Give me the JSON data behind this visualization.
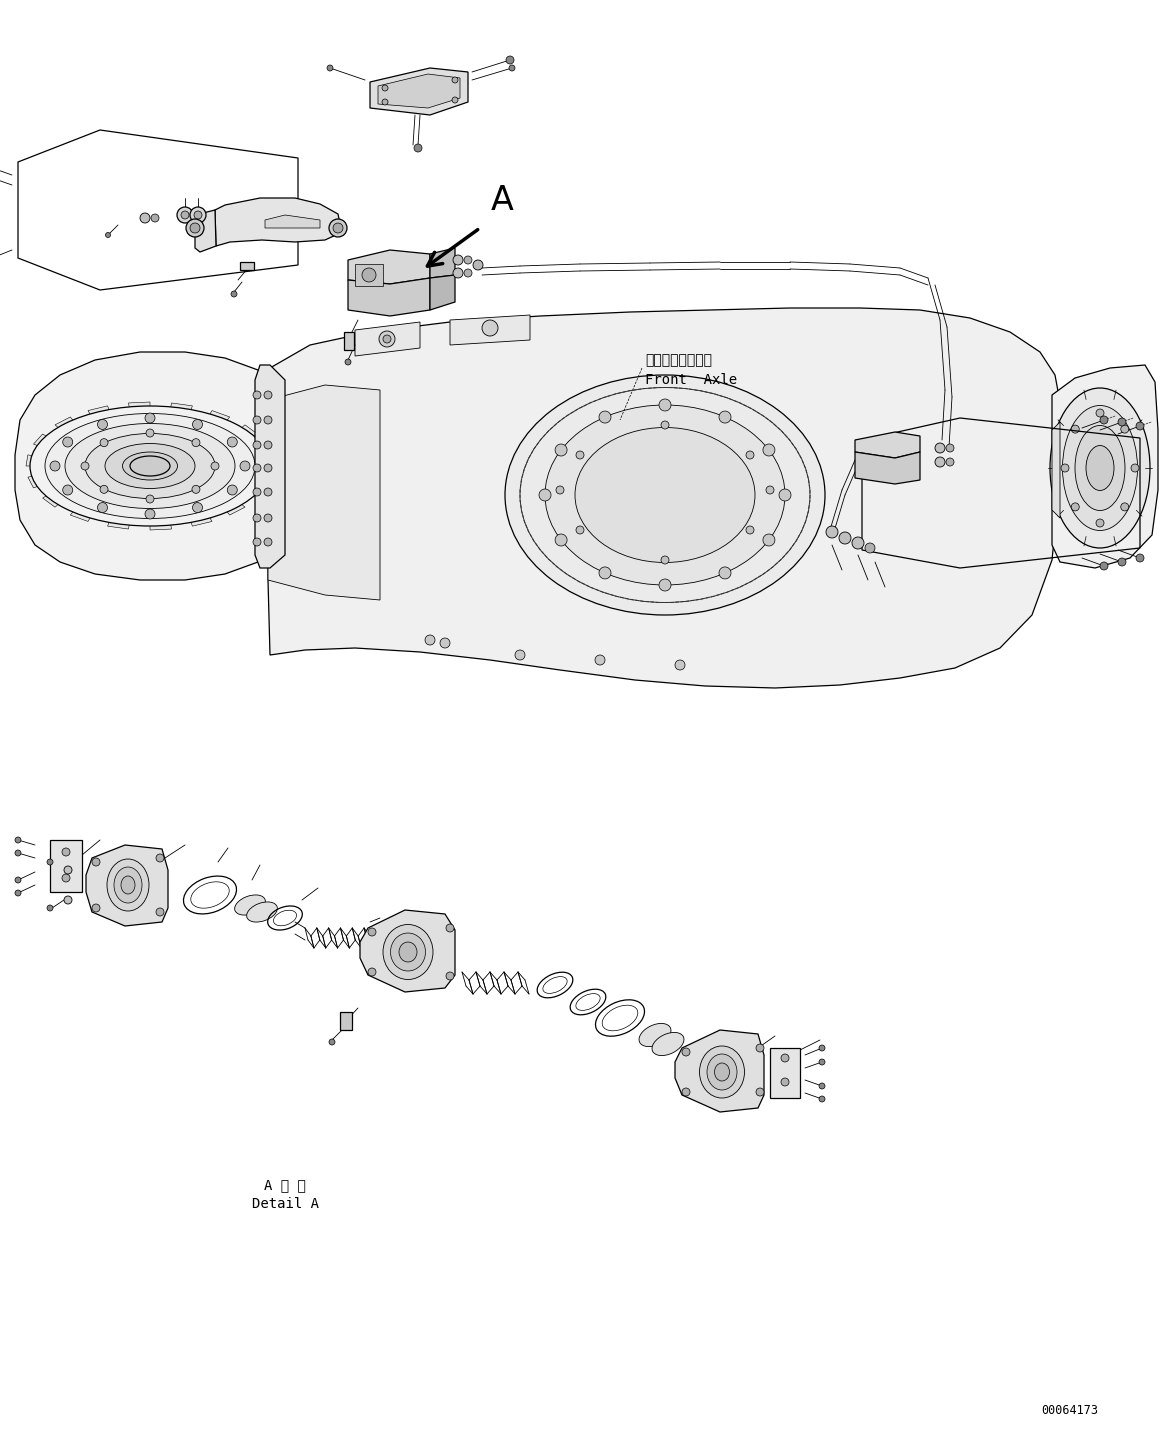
{
  "bg_color": "#ffffff",
  "line_color": "#000000",
  "fig_width": 11.63,
  "fig_height": 14.33,
  "dpi": 100,
  "part_id": "00064173",
  "label_front_axle_jp": "フロントアクスル",
  "label_front_axle_en": "Front  Axle",
  "label_A": "A",
  "label_detail_jp": "A 詳 細",
  "label_detail_en": "Detail A"
}
